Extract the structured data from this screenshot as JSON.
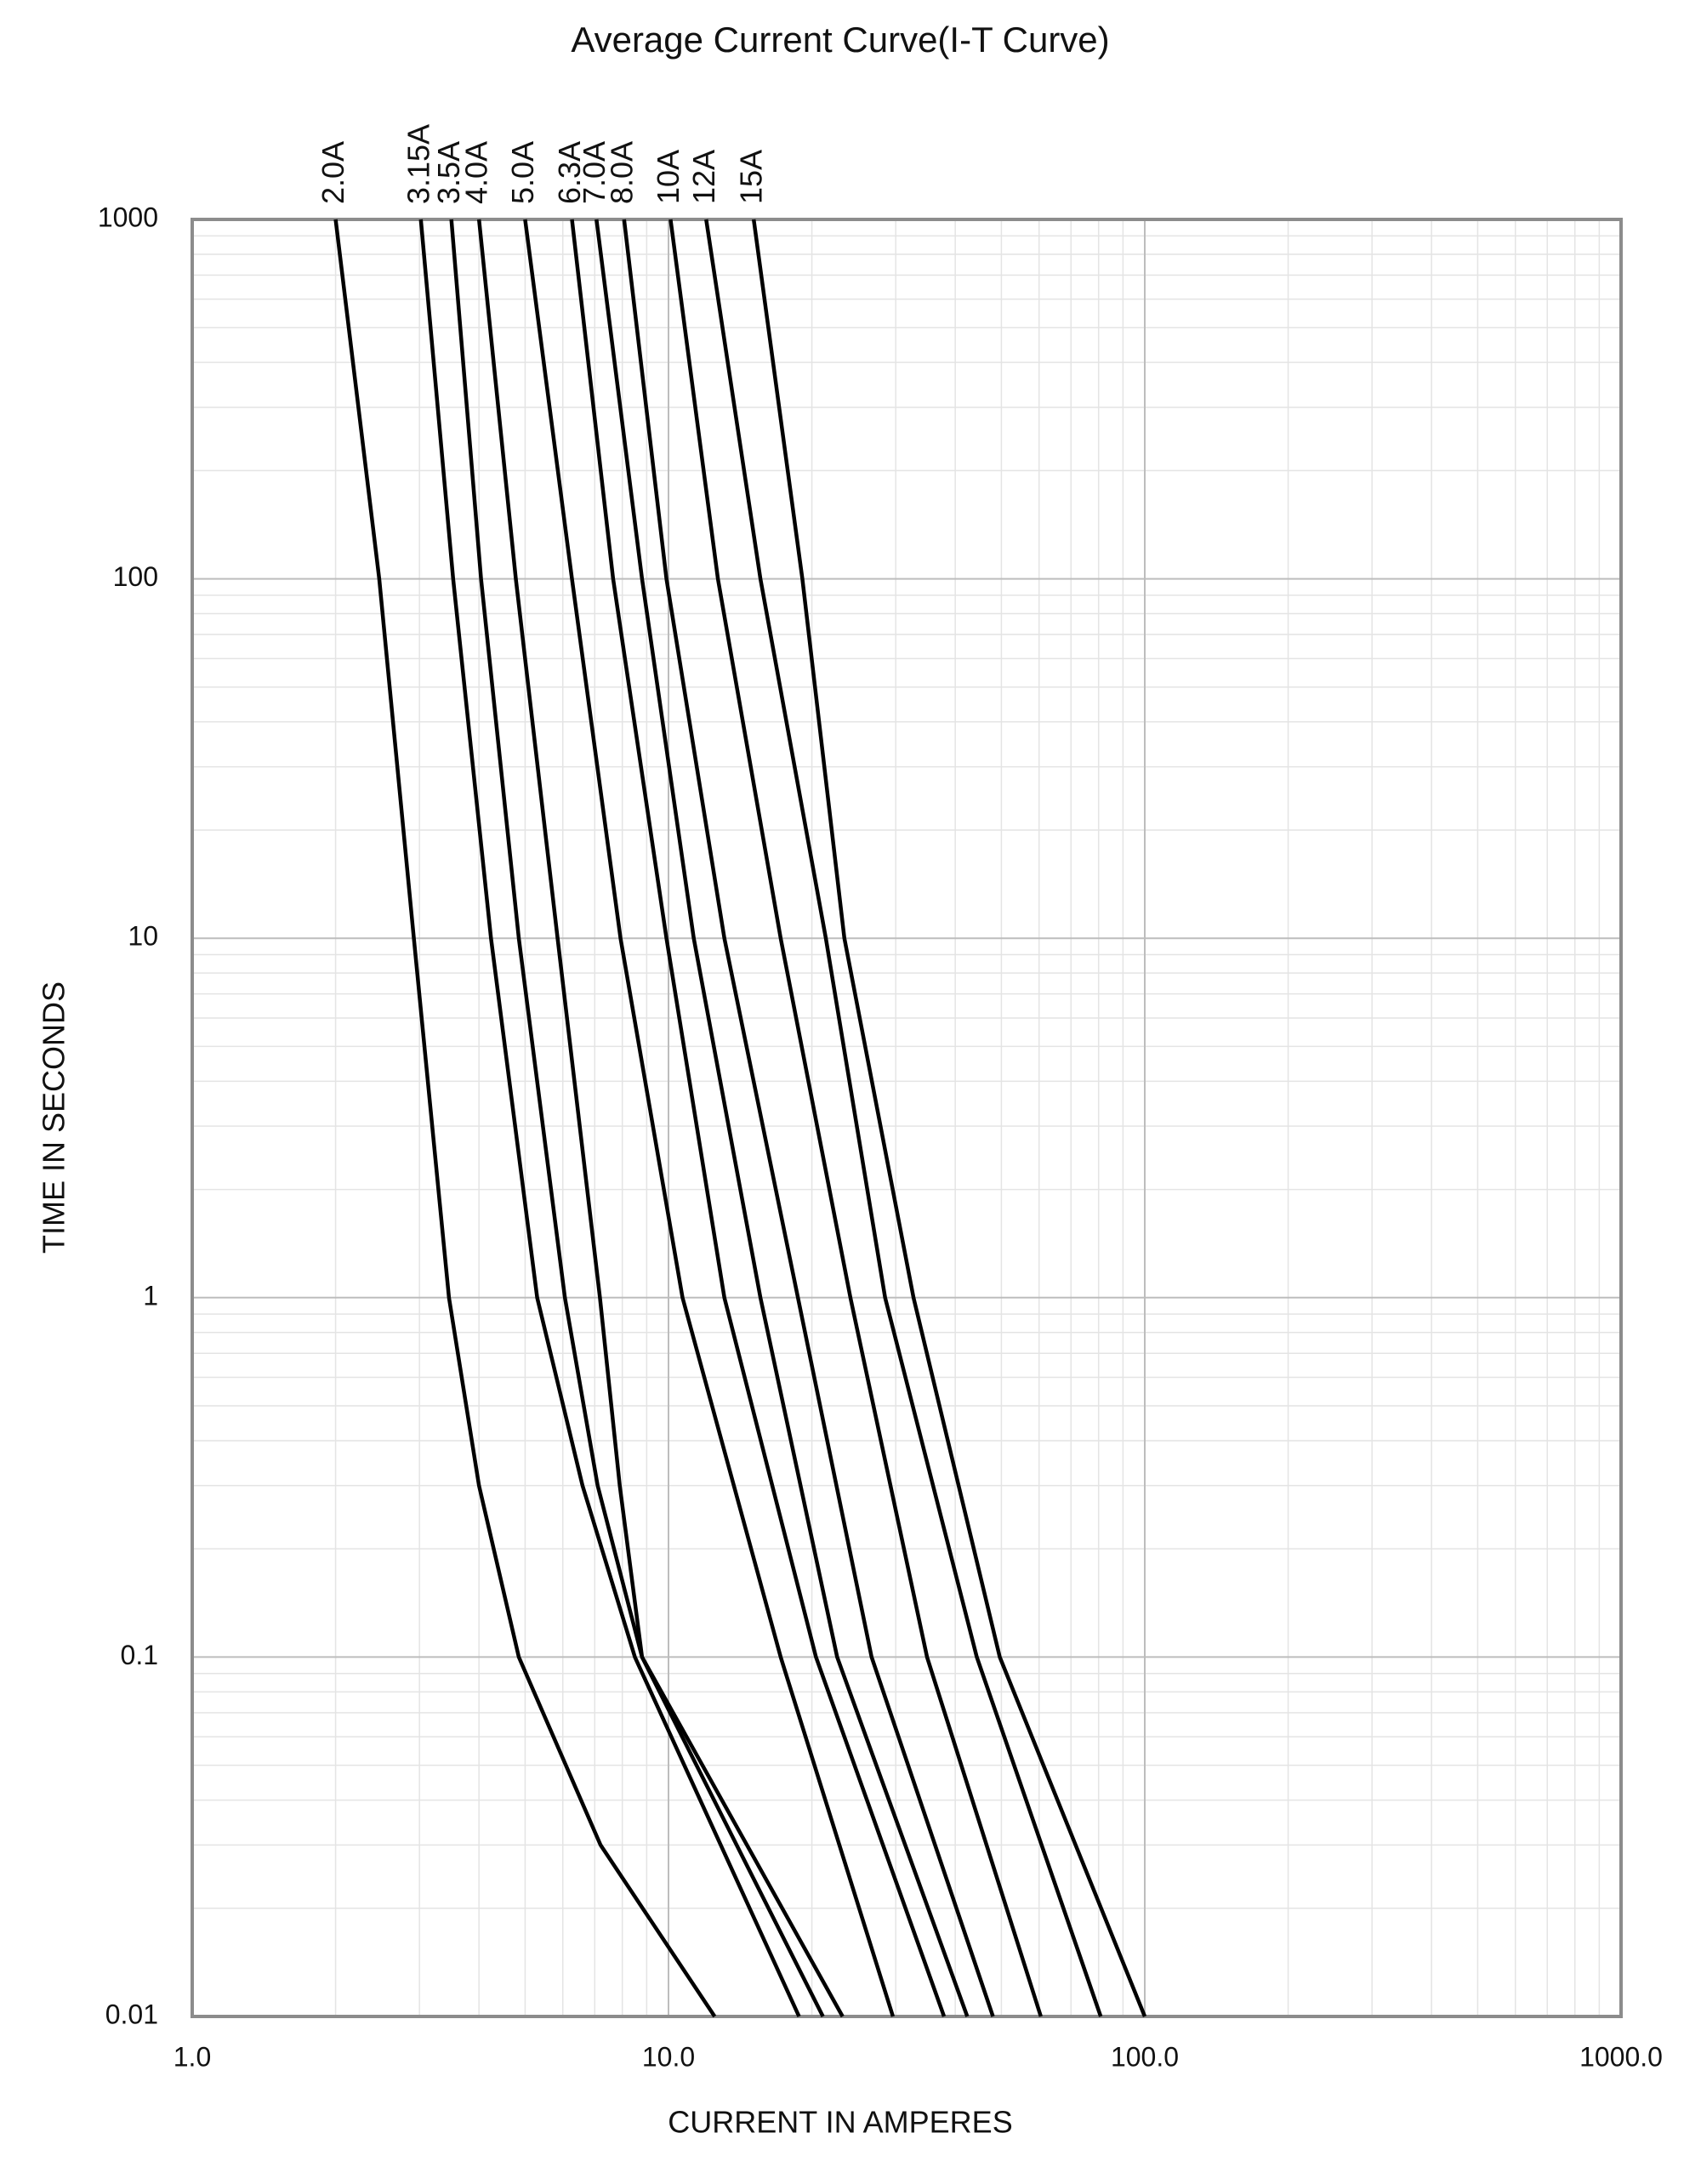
{
  "chart_data": {
    "type": "line",
    "title": "Average Current Curve(I-T Curve)",
    "x_label": "CURRENT IN AMPERES",
    "y_label": "TIME IN SECONDS",
    "log_x": true,
    "log_y": true,
    "grid": true,
    "xlim": [
      1,
      1000
    ],
    "ylim": [
      0.01,
      1000
    ],
    "xticks": [
      {
        "value": 1,
        "label": "1.0"
      },
      {
        "value": 10,
        "label": "10.0"
      },
      {
        "value": 100,
        "label": "100.0"
      },
      {
        "value": 1000,
        "label": "1000.0"
      }
    ],
    "yticks": [
      0.01,
      0.1,
      1,
      10,
      100,
      1000
    ],
    "series": [
      {
        "name": "2.0A",
        "color": "#000000",
        "x": [
          2.0,
          2.47,
          2.92,
          3.46,
          4.0,
          4.85,
          7.2,
          12.5
        ],
        "values": [
          1000,
          100,
          10,
          1,
          0.3,
          0.1,
          0.03,
          0.01
        ]
      },
      {
        "name": "3.15A",
        "color": "#000000",
        "x": [
          3.02,
          3.53,
          4.24,
          5.3,
          6.6,
          8.5,
          18.8
        ],
        "values": [
          1000,
          100,
          10,
          1,
          0.3,
          0.1,
          0.01
        ]
      },
      {
        "name": "3.5A",
        "color": "#000000",
        "x": [
          3.5,
          4.04,
          4.85,
          6.06,
          7.1,
          8.8,
          21.1
        ],
        "values": [
          1000,
          100,
          10,
          1,
          0.3,
          0.1,
          0.01
        ]
      },
      {
        "name": "4.0A",
        "color": "#000000",
        "x": [
          4.0,
          4.78,
          5.85,
          7.18,
          7.9,
          8.8,
          23.2
        ],
        "values": [
          1000,
          100,
          10,
          1,
          0.3,
          0.1,
          0.01
        ]
      },
      {
        "name": "5.0A",
        "color": "#000000",
        "x": [
          5.0,
          6.27,
          7.93,
          10.7,
          17.2,
          29.6
        ],
        "values": [
          1000,
          100,
          10,
          1,
          0.1,
          0.01
        ]
      },
      {
        "name": "6.3A",
        "color": "#000000",
        "x": [
          6.27,
          7.65,
          9.9,
          13.1,
          20.4,
          37.9
        ],
        "values": [
          1000,
          100,
          10,
          1,
          0.1,
          0.01
        ]
      },
      {
        "name": "7.0A",
        "color": "#000000",
        "x": [
          7.06,
          8.8,
          11.3,
          15.6,
          22.6,
          42.4
        ],
        "values": [
          1000,
          100,
          10,
          1,
          0.1,
          0.01
        ]
      },
      {
        "name": "8.0A",
        "color": "#000000",
        "x": [
          8.07,
          9.9,
          13.1,
          18.7,
          26.7,
          48.0
        ],
        "values": [
          1000,
          100,
          10,
          1,
          0.1,
          0.01
        ]
      },
      {
        "name": "10A",
        "color": "#000000",
        "x": [
          10.1,
          12.7,
          17.2,
          24.1,
          34.9,
          60.5
        ],
        "values": [
          1000,
          100,
          10,
          1,
          0.1,
          0.01
        ]
      },
      {
        "name": "12A",
        "color": "#000000",
        "x": [
          12.0,
          15.6,
          21.4,
          28.5,
          44.4,
          80.8
        ],
        "values": [
          1000,
          100,
          10,
          1,
          0.1,
          0.01
        ]
      },
      {
        "name": "15A",
        "color": "#000000",
        "x": [
          15.1,
          19.1,
          23.4,
          32.7,
          49.6,
          100
        ],
        "values": [
          1000,
          100,
          10,
          1,
          0.1,
          0.01
        ]
      }
    ]
  }
}
